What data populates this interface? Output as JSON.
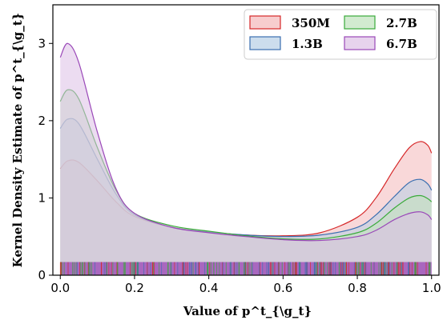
{
  "chart_data": {
    "type": "area",
    "subtype": "kde",
    "xlabel": "Value of p^t_{\\g_t}",
    "ylabel": "Kernel Density Estimate of p^t_{\\g_t}",
    "xlim": [
      -0.02,
      1.02
    ],
    "ylim": [
      0,
      3.5
    ],
    "xticks": [
      0.0,
      0.2,
      0.4,
      0.6,
      0.8,
      1.0
    ],
    "xtick_labels": [
      "0.0",
      "0.2",
      "0.4",
      "0.6",
      "0.8",
      "1.0"
    ],
    "yticks": [
      0,
      1,
      2,
      3
    ],
    "ytick_labels": [
      "0",
      "1",
      "2",
      "3"
    ],
    "grid": false,
    "legend_placement": "top-right",
    "x": [
      0.0,
      0.02,
      0.05,
      0.1,
      0.15,
      0.2,
      0.3,
      0.4,
      0.5,
      0.6,
      0.7,
      0.8,
      0.85,
      0.9,
      0.94,
      0.97,
      0.99,
      1.0
    ],
    "series": [
      {
        "name": "350M",
        "color": "#d62728",
        "fill": "#f4b8b9",
        "values": [
          1.38,
          1.48,
          1.46,
          1.22,
          0.95,
          0.76,
          0.62,
          0.56,
          0.52,
          0.51,
          0.55,
          0.75,
          1.0,
          1.38,
          1.65,
          1.73,
          1.68,
          1.58
        ]
      },
      {
        "name": "1.3B",
        "color": "#3b6fb0",
        "fill": "#b7cfe6",
        "values": [
          1.9,
          2.02,
          1.96,
          1.5,
          1.05,
          0.78,
          0.62,
          0.56,
          0.52,
          0.5,
          0.52,
          0.62,
          0.78,
          1.02,
          1.2,
          1.24,
          1.18,
          1.1
        ]
      },
      {
        "name": "2.7B",
        "color": "#3aaa3a",
        "fill": "#bfe3bc",
        "values": [
          2.25,
          2.4,
          2.28,
          1.65,
          1.1,
          0.8,
          0.64,
          0.57,
          0.51,
          0.47,
          0.47,
          0.55,
          0.67,
          0.87,
          1.0,
          1.03,
          0.99,
          0.95
        ]
      },
      {
        "name": "6.7B",
        "color": "#9a48b8",
        "fill": "#ddc0e6",
        "values": [
          2.82,
          3.0,
          2.75,
          1.85,
          1.12,
          0.8,
          0.62,
          0.55,
          0.5,
          0.46,
          0.45,
          0.5,
          0.58,
          0.72,
          0.8,
          0.82,
          0.78,
          0.72
        ]
      }
    ],
    "rug": {
      "height": 0.17,
      "color_dense": "#9b45b5",
      "accent_colors": [
        "#3aaa3a",
        "#3b6fb0",
        "#d62728"
      ]
    }
  }
}
